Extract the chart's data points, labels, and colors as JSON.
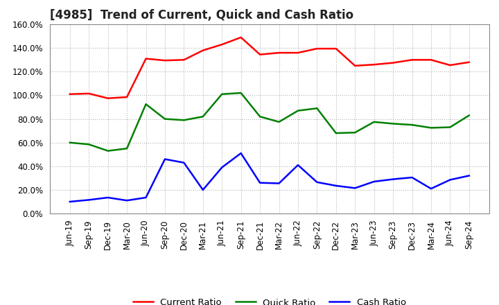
{
  "title": "[4985]  Trend of Current, Quick and Cash Ratio",
  "x_labels": [
    "Jun-19",
    "Sep-19",
    "Dec-19",
    "Mar-20",
    "Jun-20",
    "Sep-20",
    "Dec-20",
    "Mar-21",
    "Jun-21",
    "Sep-21",
    "Dec-21",
    "Mar-22",
    "Jun-22",
    "Sep-22",
    "Dec-22",
    "Mar-23",
    "Jun-23",
    "Sep-23",
    "Dec-23",
    "Mar-24",
    "Jun-24",
    "Sep-24"
  ],
  "current_ratio": [
    101.0,
    101.5,
    97.5,
    98.5,
    131.0,
    129.5,
    130.0,
    138.0,
    143.0,
    149.0,
    134.5,
    136.0,
    136.0,
    139.5,
    139.5,
    125.0,
    126.0,
    127.5,
    130.0,
    130.0,
    125.5,
    128.0
  ],
  "quick_ratio": [
    60.0,
    58.5,
    53.0,
    55.0,
    92.5,
    80.0,
    79.0,
    82.0,
    101.0,
    102.0,
    82.0,
    77.5,
    87.0,
    89.0,
    68.0,
    68.5,
    77.5,
    76.0,
    75.0,
    72.5,
    73.0,
    83.0
  ],
  "cash_ratio": [
    10.0,
    11.5,
    13.5,
    11.0,
    13.5,
    46.0,
    43.0,
    20.0,
    39.0,
    51.0,
    26.0,
    25.5,
    41.0,
    26.5,
    23.5,
    21.5,
    27.0,
    29.0,
    30.5,
    21.0,
    28.5,
    32.0
  ],
  "current_color": "#FF0000",
  "quick_color": "#008000",
  "cash_color": "#0000FF",
  "line_width": 1.8,
  "ylim_min": 0,
  "ylim_max": 160,
  "ytick_step": 20,
  "background_color": "#FFFFFF",
  "plot_bg_color": "#FFFFFF",
  "grid_color": "#AAAAAA",
  "legend_labels": [
    "Current Ratio",
    "Quick Ratio",
    "Cash Ratio"
  ],
  "title_fontsize": 12,
  "tick_fontsize": 8.5
}
